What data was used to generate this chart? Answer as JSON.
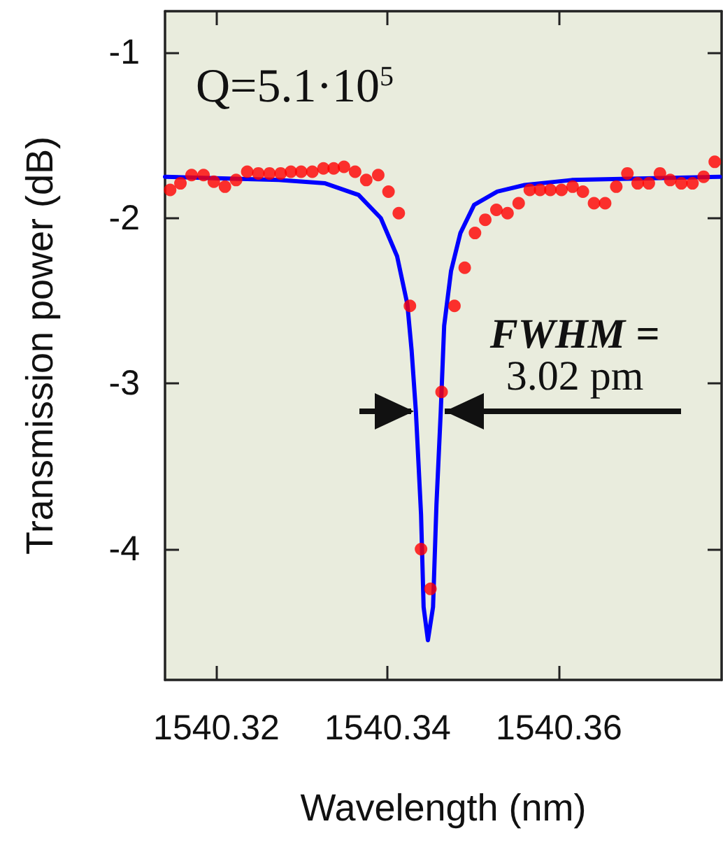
{
  "chart_data": {
    "type": "scatter",
    "xlabel": "Wavelength (nm)",
    "ylabel": "Transmission power (dB)",
    "xlim": [
      1540.314,
      1540.379
    ],
    "xticks": [
      1540.32,
      1540.34,
      1540.36
    ],
    "ylim": [
      -4.79,
      -0.75
    ],
    "yticks": [
      -1,
      -2,
      -3,
      -4
    ],
    "grid": false,
    "annotations": [
      "Q=5.1·10$^{5}$",
      "FWHM =\n3.02 pm"
    ],
    "series": [
      {
        "marker": "circle",
        "color": "#ff0000",
        "x": [
          1540.3146,
          1540.3158,
          1540.3171,
          1540.3185,
          1540.3197,
          1540.321,
          1540.3223,
          1540.3236,
          1540.3249,
          1540.3262,
          1540.3275,
          1540.3287,
          1540.3299,
          1540.3312,
          1540.3325,
          1540.3337,
          1540.3349,
          1540.3362,
          1540.3375,
          1540.3389,
          1540.3401,
          1540.3413,
          1540.3426,
          1540.3439,
          1540.345,
          1540.3463,
          1540.3478,
          1540.349,
          1540.3502,
          1540.3514,
          1540.3527,
          1540.354,
          1540.3553,
          1540.3566,
          1540.3578,
          1540.359,
          1540.3603,
          1540.3616,
          1540.3628,
          1540.3641,
          1540.3654,
          1540.3667,
          1540.368,
          1540.3692,
          1540.3705,
          1540.3718,
          1540.373,
          1540.3743,
          1540.3756,
          1540.3769,
          1540.3782
        ],
        "values": [
          -1.83,
          -1.79,
          -1.74,
          -1.74,
          -1.78,
          -1.81,
          -1.77,
          -1.72,
          -1.73,
          -1.73,
          -1.73,
          -1.72,
          -1.72,
          -1.72,
          -1.7,
          -1.7,
          -1.69,
          -1.72,
          -1.77,
          -1.74,
          -1.84,
          -1.97,
          -2.53,
          -4.0,
          -4.24,
          -3.05,
          -2.53,
          -2.3,
          -2.09,
          -2.01,
          -1.95,
          -1.97,
          -1.91,
          -1.83,
          -1.83,
          -1.83,
          -1.83,
          -1.81,
          -1.84,
          -1.91,
          -1.91,
          -1.81,
          -1.73,
          -1.79,
          -1.79,
          -1.73,
          -1.77,
          -1.79,
          -1.79,
          -1.75,
          -1.66
        ]
      },
      {
        "type": "line",
        "color": "#0000ff",
        "line_style": "solid",
        "x": [
          1540.314,
          1540.3273,
          1540.3327,
          1540.3366,
          1540.3392,
          1540.3411,
          1540.3423,
          1540.3428,
          1540.3433,
          1540.3439,
          1540.3442,
          1540.3447,
          1540.3453,
          1540.3457,
          1540.3462,
          1540.3466,
          1540.3474,
          1540.3485,
          1540.3501,
          1540.3528,
          1540.356,
          1540.3615,
          1540.3788
        ],
        "values": [
          -1.75,
          -1.77,
          -1.79,
          -1.86,
          -2.0,
          -2.23,
          -2.52,
          -2.8,
          -3.17,
          -3.79,
          -4.35,
          -4.55,
          -4.35,
          -3.73,
          -3.17,
          -2.65,
          -2.32,
          -2.09,
          -1.92,
          -1.84,
          -1.8,
          -1.77,
          -1.75
        ]
      }
    ]
  }
}
